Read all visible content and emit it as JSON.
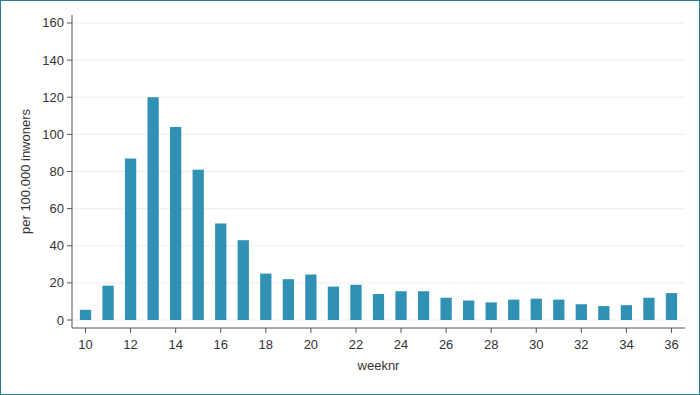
{
  "chart_data": {
    "type": "bar",
    "x_label": "weeknr",
    "y_label": "per 100.000 inwoners",
    "x": [
      10,
      11,
      12,
      13,
      14,
      15,
      16,
      17,
      18,
      19,
      20,
      21,
      22,
      23,
      24,
      25,
      26,
      27,
      28,
      29,
      30,
      31,
      32,
      33,
      34,
      35,
      36
    ],
    "values": [
      5.5,
      18.5,
      87,
      120,
      104,
      81,
      52,
      43,
      25,
      22,
      24.5,
      18,
      19,
      14,
      15.5,
      15.5,
      12,
      10.5,
      9.5,
      11,
      11.5,
      11,
      8.5,
      7.5,
      8,
      12,
      14.5
    ],
    "color": "#3191b5",
    "xlim": [
      9.4,
      36.6
    ],
    "xticks": [
      10,
      12,
      14,
      16,
      18,
      20,
      22,
      24,
      26,
      28,
      30,
      32,
      34,
      36
    ],
    "ylim": [
      -4.3,
      164.3
    ],
    "yticks": [
      0,
      20,
      40,
      60,
      80,
      100,
      120,
      140,
      160
    ],
    "grid": true
  }
}
